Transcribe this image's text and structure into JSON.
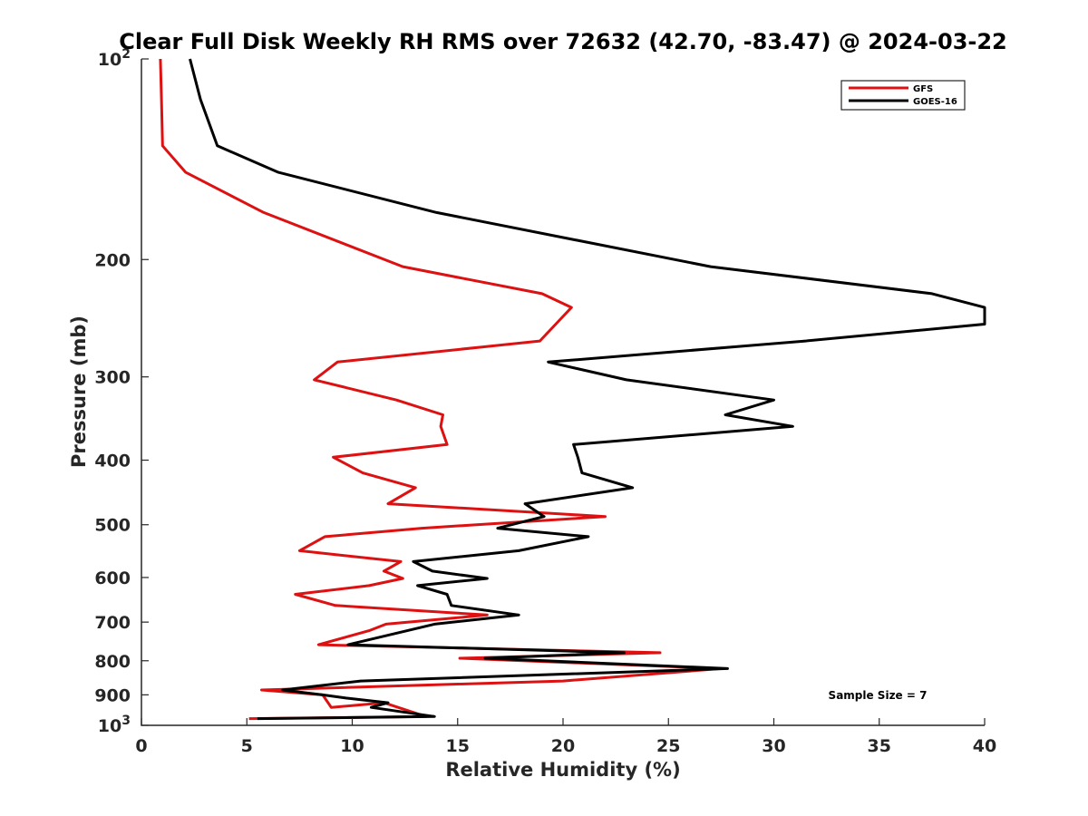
{
  "chart_data": {
    "type": "line",
    "title": "Clear Full Disk Weekly RH RMS over 72632 (42.70, -83.47) @ 2024-03-22",
    "xlabel": "Relative Humidity (%)",
    "ylabel": "Pressure (mb)",
    "xlim": [
      0,
      40
    ],
    "ylim": [
      100,
      1000
    ],
    "yscale": "log",
    "y_reversed": true,
    "grid": false,
    "legend_position": "top-right",
    "xticks": [
      0,
      5,
      10,
      15,
      20,
      25,
      30,
      35,
      40
    ],
    "yticks": [
      {
        "value": 100,
        "base": "10",
        "exp": "2"
      },
      {
        "value": 200,
        "label": "200"
      },
      {
        "value": 300,
        "label": "300"
      },
      {
        "value": 400,
        "label": "400"
      },
      {
        "value": 500,
        "label": "500"
      },
      {
        "value": 600,
        "label": "600"
      },
      {
        "value": 700,
        "label": "700"
      },
      {
        "value": 800,
        "label": "800"
      },
      {
        "value": 900,
        "label": "900"
      },
      {
        "value": 1000,
        "base": "10",
        "exp": "3"
      }
    ],
    "annotation": "Sample Size = 7",
    "series": [
      {
        "name": "GFS",
        "color": "#dd1111",
        "x": [
          0.9,
          0.95,
          1.0,
          2.1,
          5.8,
          12.4,
          19.0,
          20.4,
          18.9,
          9.3,
          8.2,
          12.1,
          14.3,
          14.2,
          14.5,
          9.1,
          10.5,
          13.0,
          11.7,
          22.0,
          13.3,
          8.7,
          7.5,
          12.3,
          11.5,
          12.4,
          10.8,
          7.3,
          9.2,
          16.4,
          11.6,
          10.8,
          8.4,
          24.6,
          15.1,
          27.5,
          20.0,
          5.7,
          8.6,
          9.0,
          11.5,
          13.5,
          5.1
        ],
        "y": [
          100,
          115,
          135,
          148,
          170,
          205,
          225,
          236,
          265,
          285,
          303,
          325,
          342,
          356,
          379,
          396,
          418,
          440,
          465,
          486,
          506,
          521,
          547,
          568,
          587,
          602,
          617,
          636,
          661,
          683,
          705,
          721,
          757,
          778,
          793,
          822,
          858,
          885,
          900,
          940,
          925,
          970,
          977
        ]
      },
      {
        "name": "GOES-16",
        "color": "#000000",
        "x": [
          2.3,
          2.8,
          3.6,
          6.5,
          14.0,
          27.0,
          37.5,
          40.0,
          40.0,
          31.5,
          19.3,
          23.0,
          30.0,
          27.7,
          30.9,
          20.5,
          20.7,
          20.9,
          23.3,
          18.2,
          19.1,
          16.9,
          21.2,
          17.9,
          12.9,
          13.8,
          16.4,
          13.1,
          14.5,
          14.7,
          17.9,
          13.9,
          9.8,
          22.9,
          16.3,
          27.8,
          10.4,
          6.7,
          8.6,
          9.7,
          11.7,
          10.9,
          13.9,
          5.5
        ],
        "y": [
          100,
          115,
          135,
          148,
          170,
          205,
          225,
          236,
          250,
          265,
          285,
          303,
          325,
          342,
          356,
          379,
          396,
          418,
          440,
          465,
          486,
          506,
          521,
          547,
          568,
          587,
          602,
          617,
          636,
          661,
          683,
          705,
          757,
          778,
          793,
          822,
          858,
          885,
          900,
          910,
          925,
          940,
          970,
          977
        ]
      }
    ]
  }
}
